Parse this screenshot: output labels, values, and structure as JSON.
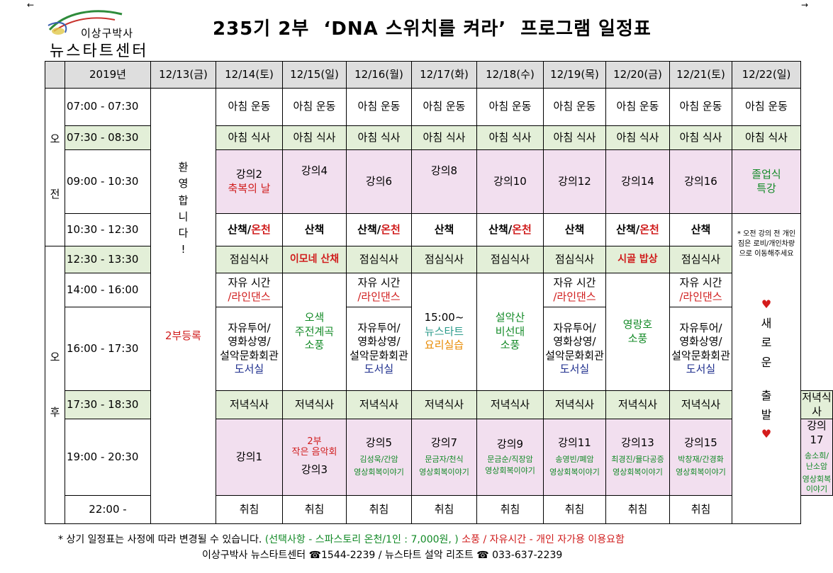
{
  "corners": {
    "left": "←",
    "right": "→"
  },
  "logo": {
    "line1": "이상구박사",
    "line2": "뉴스타트센터"
  },
  "title": "235기 2부  ‘DNA 스위치를 켜라’  프로그램 일정표",
  "header": {
    "year": "2019년",
    "dates": [
      "12/13(금)",
      "12/14(토)",
      "12/15(일)",
      "12/16(월)",
      "12/17(화)",
      "12/18(수)",
      "12/19(목)",
      "12/20(금)",
      "12/21(토)",
      "12/22(일)"
    ]
  },
  "periods": {
    "am": [
      "오",
      "전"
    ],
    "pm": [
      "오",
      "후"
    ]
  },
  "times": [
    "07:00 - 07:30",
    "07:30 - 08:30",
    "09:00 - 10:30",
    "10:30 - 12:30",
    "12:30 - 13:30",
    "14:00 - 16:00",
    "16:00 - 17:30",
    "17:30 - 18:30",
    "19:00 - 20:30",
    "22:00 -"
  ],
  "welcome": [
    "환",
    "영",
    "합",
    "니",
    "다",
    "!"
  ],
  "reg2": "2부등록",
  "morning_exercise": "아침 운동",
  "breakfast": "아침 식사",
  "lunch": "점심식사",
  "dinner": "저녁식사",
  "sleep": "취침",
  "walk": "산책",
  "walk_spa_a": "산책/",
  "walk_spa_b": "온천",
  "lectures_am": {
    "d14a": "강의2",
    "d14b": "축복의 날",
    "d15": "강의4",
    "d16": "강의6",
    "d17": "강의8",
    "d18": "강의10",
    "d19": "강의12",
    "d20": "강의14",
    "d21": "강의16",
    "d22a": "졸업식",
    "d22b": "특강"
  },
  "note22": "* 오전 강의 전 개인 짐은 로비/개인차량으로 이동해주세요",
  "lunch_special": {
    "d15": "이모네 산채",
    "d20": "시골 밥상"
  },
  "free_a": "자유 시간",
  "free_b": "/라인댄스",
  "tour_a": "자유투어/",
  "tour_b": "영화상영/",
  "tour_c": "설악문화회관",
  "tour_d": "도서실",
  "picnic15": [
    "오색",
    "주전계곡",
    "소풍"
  ],
  "class17": {
    "time": "15:00~",
    "name": "뉴스타트",
    "cook": "요리실습"
  },
  "picnic18": [
    "설악산",
    "비선대",
    "소풍"
  ],
  "picnic20": [
    "영랑호",
    "소풍"
  ],
  "heart": "♥",
  "newstart": [
    "새",
    "로",
    "운",
    "",
    "출",
    "발"
  ],
  "eve": {
    "d13": "강의1",
    "d14a": "2부",
    "d14b": "작은 음악회",
    "d14c": "강의3",
    "lectures": [
      {
        "name": "강의5",
        "speaker": "김성욱/간암"
      },
      {
        "name": "강의7",
        "speaker": "문금자/천식"
      },
      {
        "name": "강의9",
        "speaker": "문금순/직장암"
      },
      {
        "name": "강의11",
        "speaker": "송영빈/폐암"
      },
      {
        "name": "강의13",
        "speaker": "최경진/뮬다공증"
      },
      {
        "name": "강의15",
        "speaker": "박창재/간경화"
      },
      {
        "name": "강의17",
        "speaker": "송소희/난소암"
      }
    ],
    "story": "영상회복이야기"
  },
  "footer": {
    "p1": "* 상기 일정표는 사정에 따라 변경될 수 있습니다. ",
    "p2": "(선택사항 - 스파스토리 온천/1인 : 7,000원, )",
    "p3": " 소풍 / 자유시간 - 개인 자가용 이용요함",
    "line2": "이상구박사 뉴스타트센터 ☎1544-2239  /  뉴스타트 설악 리조트 ☎ 033-637-2239"
  },
  "colors": {
    "red": "#d01c1c",
    "blue": "#1f2f8e",
    "green": "#138a27",
    "orange": "#e88a00",
    "teal": "#2a9a8a",
    "rowGreen": "#e3efd8",
    "rowPink": "#f2dfef",
    "header": "#dedede"
  }
}
